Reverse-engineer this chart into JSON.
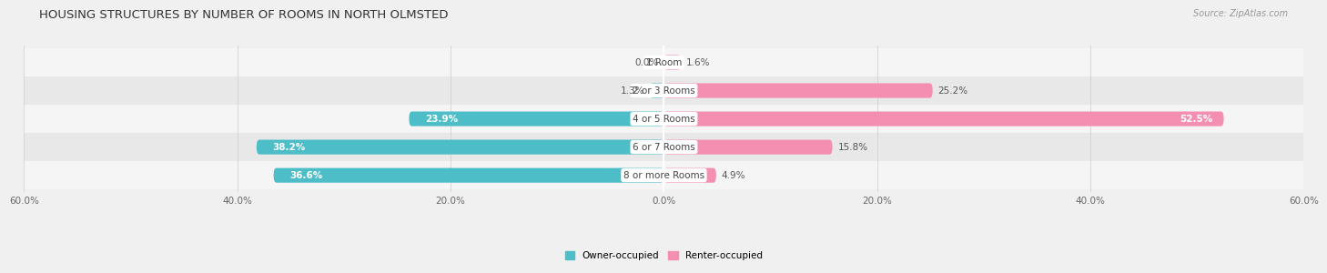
{
  "title": "HOUSING STRUCTURES BY NUMBER OF ROOMS IN NORTH OLMSTED",
  "source": "Source: ZipAtlas.com",
  "categories": [
    "1 Room",
    "2 or 3 Rooms",
    "4 or 5 Rooms",
    "6 or 7 Rooms",
    "8 or more Rooms"
  ],
  "owner_values": [
    0.0,
    1.3,
    23.9,
    38.2,
    36.6
  ],
  "renter_values": [
    1.6,
    25.2,
    52.5,
    15.8,
    4.9
  ],
  "owner_color": "#4dbdc7",
  "renter_color": "#f48fb1",
  "bar_height": 0.52,
  "xlim": [
    -60,
    60
  ],
  "xtick_values": [
    -60,
    -40,
    -20,
    0,
    20,
    40,
    60
  ],
  "bg_color": "#f0f0f0",
  "row_bg_light": "#f5f5f5",
  "row_bg_dark": "#e8e8e8",
  "title_fontsize": 9.5,
  "label_fontsize": 7.5,
  "category_fontsize": 7.5,
  "axis_fontsize": 7.5,
  "legend_fontsize": 7.5,
  "source_fontsize": 7,
  "owner_label_inside_threshold": 5,
  "renter_label_inside_threshold": 50
}
